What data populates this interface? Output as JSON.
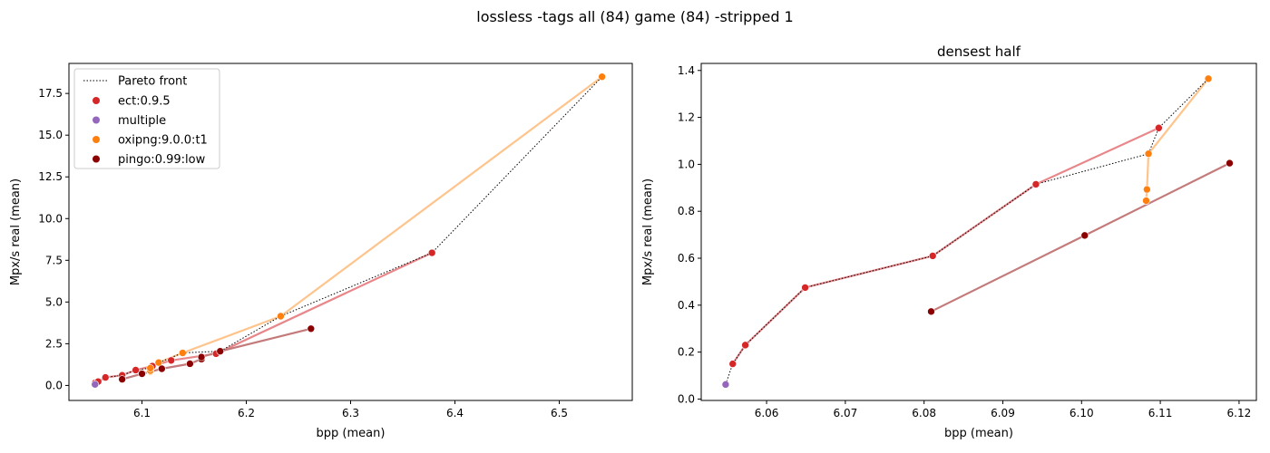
{
  "figure": {
    "suptitle": "lossless -tags all (84) game (84) -stripped 1"
  },
  "colors": {
    "ect": "#d62728",
    "multiple": "#9467bd",
    "oxipng": "#ff7f0e",
    "pingo": "#8b0000",
    "ect_line": "#e8868a",
    "oxipng_line": "#ffc48c",
    "pingo_line": "#c47a7a"
  },
  "legend": {
    "pareto": "Pareto front",
    "entries": [
      {
        "key": "ect",
        "label": "ect:0.9.5"
      },
      {
        "key": "multiple",
        "label": "multiple"
      },
      {
        "key": "oxipng",
        "label": "oxipng:9.0.0:t1"
      },
      {
        "key": "pingo",
        "label": "pingo:0.99:low"
      }
    ]
  },
  "chart_data": [
    {
      "type": "scatter",
      "title": "",
      "xlabel": "bpp (mean)",
      "ylabel": "Mpx/s real (mean)",
      "xlim": [
        6.03,
        6.57
      ],
      "ylim": [
        -0.9,
        19.3
      ],
      "xticks": [
        6.1,
        6.2,
        6.3,
        6.4,
        6.5
      ],
      "xtick_labels": [
        "6.1",
        "6.2",
        "6.3",
        "6.4",
        "6.5"
      ],
      "yticks": [
        0,
        2.5,
        5,
        7.5,
        10,
        12.5,
        15,
        17.5
      ],
      "ytick_labels": [
        "0.0",
        "2.5",
        "5.0",
        "7.5",
        "10.0",
        "12.5",
        "15.0",
        "17.5"
      ],
      "legend_position": "upper-left",
      "series": [
        {
          "name": "ect:0.9.5",
          "key": "ect",
          "points": [
            [
              6.055,
              0.15
            ],
            [
              6.058,
              0.23
            ],
            [
              6.065,
              0.48
            ],
            [
              6.081,
              0.61
            ],
            [
              6.094,
              0.92
            ],
            [
              6.11,
              1.16
            ],
            [
              6.128,
              1.5
            ],
            [
              6.171,
              1.9
            ],
            [
              6.378,
              7.95
            ]
          ]
        },
        {
          "name": "multiple",
          "key": "multiple",
          "points": [
            [
              6.055,
              0.06
            ]
          ]
        },
        {
          "name": "oxipng:9.0.0:t1",
          "key": "oxipng",
          "points": [
            [
              6.108,
              0.84
            ],
            [
              6.108,
              0.89
            ],
            [
              6.108,
              1.04
            ],
            [
              6.116,
              1.37
            ],
            [
              6.139,
              1.95
            ],
            [
              6.233,
              4.15
            ],
            [
              6.541,
              18.5
            ]
          ]
        },
        {
          "name": "pingo:0.99:low",
          "key": "pingo",
          "points": [
            [
              6.081,
              0.37
            ],
            [
              6.1,
              0.7
            ],
            [
              6.119,
              1.0
            ],
            [
              6.146,
              1.3
            ],
            [
              6.157,
              1.58
            ],
            [
              6.157,
              1.7
            ],
            [
              6.175,
              2.05
            ],
            [
              6.262,
              3.4
            ]
          ]
        }
      ],
      "pareto_front": [
        [
          6.055,
          0.06
        ],
        [
          6.055,
          0.15
        ],
        [
          6.058,
          0.23
        ],
        [
          6.065,
          0.48
        ],
        [
          6.081,
          0.61
        ],
        [
          6.094,
          0.92
        ],
        [
          6.108,
          1.04
        ],
        [
          6.11,
          1.16
        ],
        [
          6.116,
          1.37
        ],
        [
          6.139,
          1.95
        ],
        [
          6.175,
          2.05
        ],
        [
          6.233,
          4.15
        ],
        [
          6.378,
          7.95
        ],
        [
          6.541,
          18.5
        ]
      ]
    },
    {
      "type": "scatter",
      "title": "densest half",
      "xlabel": "bpp (mean)",
      "ylabel": "Mpx/s real (mean)",
      "xlim": [
        6.0517,
        6.1222
      ],
      "ylim": [
        -0.006,
        1.43
      ],
      "xticks": [
        6.06,
        6.07,
        6.08,
        6.09,
        6.1,
        6.11,
        6.12
      ],
      "xtick_labels": [
        "6.06",
        "6.07",
        "6.08",
        "6.09",
        "6.10",
        "6.11",
        "6.12"
      ],
      "yticks": [
        0,
        0.2,
        0.4,
        0.6,
        0.8,
        1.0,
        1.2,
        1.4
      ],
      "ytick_labels": [
        "0.0",
        "0.2",
        "0.4",
        "0.6",
        "0.8",
        "1.0",
        "1.2",
        "1.4"
      ],
      "series": [
        {
          "name": "ect:0.9.5",
          "key": "ect",
          "points": [
            [
              6.0557,
              0.15
            ],
            [
              6.0573,
              0.23
            ],
            [
              6.0649,
              0.475
            ],
            [
              6.0811,
              0.61
            ],
            [
              6.0942,
              0.915
            ],
            [
              6.1098,
              1.155
            ]
          ]
        },
        {
          "name": "multiple",
          "key": "multiple",
          "points": [
            [
              6.0548,
              0.062
            ]
          ]
        },
        {
          "name": "oxipng:9.0.0:t1",
          "key": "oxipng",
          "points": [
            [
              6.1082,
              0.845
            ],
            [
              6.1083,
              0.893
            ],
            [
              6.1085,
              1.045
            ],
            [
              6.1161,
              1.365
            ]
          ]
        },
        {
          "name": "pingo:0.99:low",
          "key": "pingo",
          "points": [
            [
              6.0809,
              0.373
            ],
            [
              6.1004,
              0.697
            ],
            [
              6.1188,
              1.005
            ]
          ]
        }
      ],
      "pareto_front": [
        [
          6.0548,
          0.062
        ],
        [
          6.0557,
          0.15
        ],
        [
          6.0573,
          0.23
        ],
        [
          6.0649,
          0.475
        ],
        [
          6.0811,
          0.61
        ],
        [
          6.0942,
          0.915
        ],
        [
          6.1085,
          1.045
        ],
        [
          6.1098,
          1.155
        ],
        [
          6.1161,
          1.365
        ]
      ]
    }
  ]
}
